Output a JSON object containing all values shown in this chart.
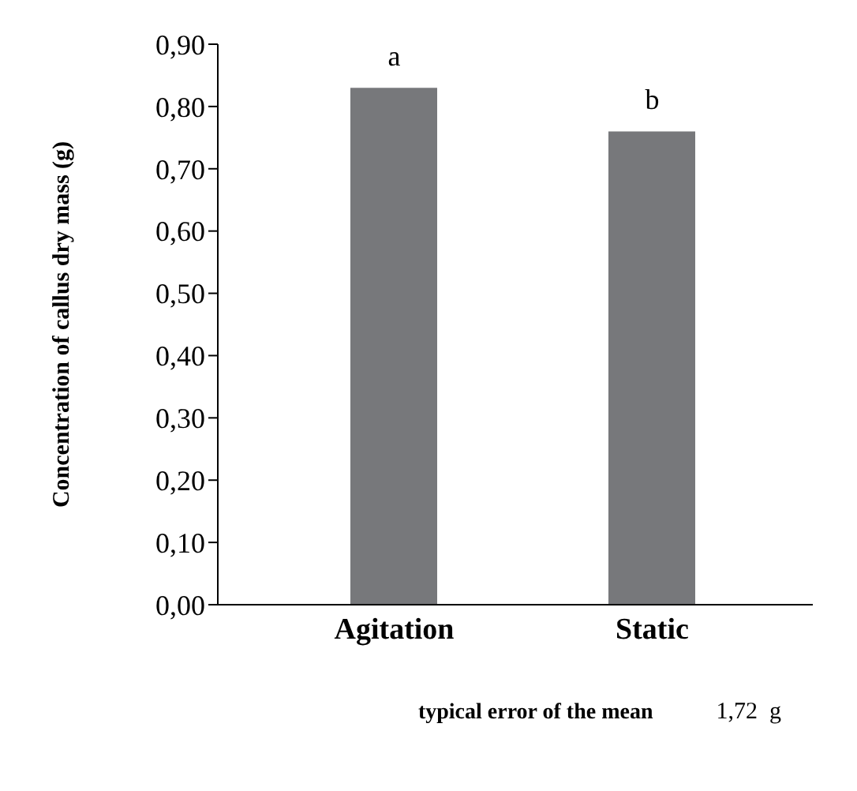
{
  "chart_data": {
    "type": "bar",
    "ylabel": "Concentration of callus dry mass (g)",
    "categories": [
      "Agitation",
      "Static"
    ],
    "values": [
      0.83,
      0.76
    ],
    "color": "#77787b",
    "ylim": [
      0,
      0.9
    ],
    "yticks": [
      {
        "value": 0,
        "label": "0,00"
      },
      {
        "value": 0.1,
        "label": "0,10"
      },
      {
        "value": 0.2,
        "label": "0,20"
      },
      {
        "value": 0.3,
        "label": "0,30"
      },
      {
        "value": 0.4,
        "label": "0,40"
      },
      {
        "value": 0.5,
        "label": "0,50"
      },
      {
        "value": 0.6,
        "label": "0,60"
      },
      {
        "value": 0.7,
        "label": "0,70"
      },
      {
        "value": 0.8,
        "label": "0,80"
      },
      {
        "value": 0.9,
        "label": "0,90"
      }
    ],
    "grid": false,
    "legend": false,
    "annotations": [
      {
        "text": "a",
        "x": "Agitation",
        "y": 0.83
      },
      {
        "text": "b",
        "x": "Static",
        "y": 0.76
      },
      "typical error of the mean",
      "1,72  g"
    ]
  }
}
